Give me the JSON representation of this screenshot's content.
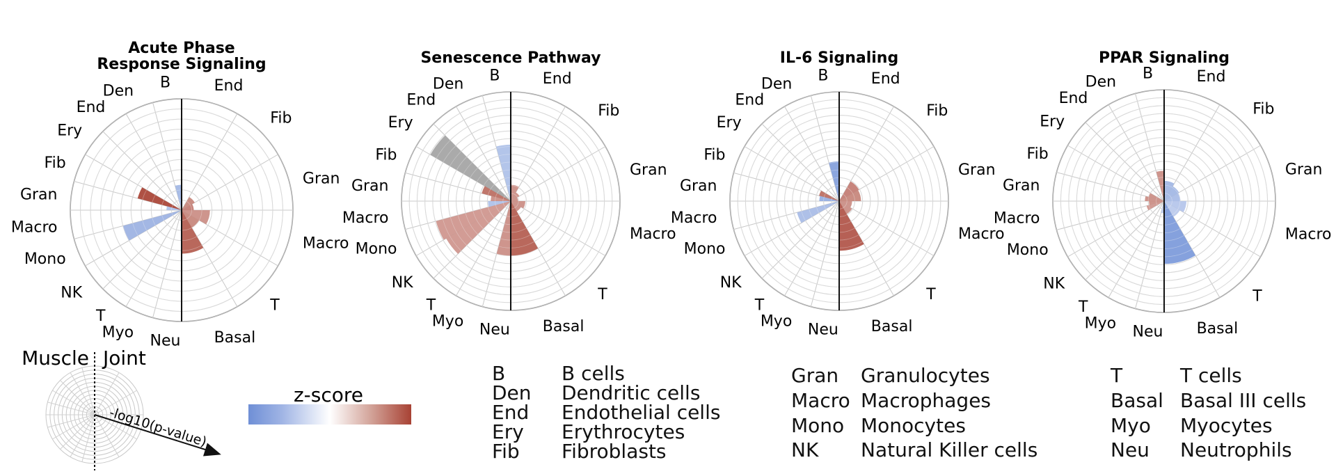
{
  "chart_data": [
    {
      "type": "polar-bar",
      "title": "Acute Phase\nResponse Signaling",
      "left_categories": [
        "B",
        "Den",
        "End",
        "Ery",
        "Fib",
        "Gran",
        "Macro",
        "Mono",
        "NK",
        "T",
        "Myo",
        "Neu"
      ],
      "right_categories": [
        "End",
        "Fib",
        "Gran",
        "Macro",
        "T",
        "Basal"
      ],
      "left_values": [
        2.5,
        0,
        0,
        0,
        4.5,
        1.5,
        0,
        6.0,
        0,
        0,
        0,
        0
      ],
      "right_values": [
        0,
        1.5,
        1.2,
        2.8,
        2.0,
        4.3
      ],
      "left_z": [
        -0.7,
        0,
        0,
        0,
        1.5,
        -0.5,
        0,
        -0.8,
        0,
        0,
        0,
        0
      ],
      "right_z": [
        0,
        0.7,
        0.8,
        0.6,
        0.7,
        1.2
      ],
      "r_max": 11,
      "rings": 11
    },
    {
      "type": "polar-bar",
      "title": "Senescence Pathway",
      "left_categories": [
        "B",
        "Den",
        "End",
        "Ery",
        "Fib",
        "Gran",
        "Macro",
        "Mono",
        "NK",
        "T",
        "Myo",
        "Neu"
      ],
      "right_categories": [
        "End",
        "Fib",
        "Gran",
        "Macro",
        "T",
        "Basal"
      ],
      "left_values": [
        6.2,
        0,
        0,
        10.2,
        3.3,
        2.2,
        2.5,
        8.5,
        8.2,
        0,
        0,
        6.0
      ],
      "right_values": [
        1.8,
        1.1,
        0.8,
        1.6,
        1.3,
        6.0
      ],
      "left_z": [
        -0.5,
        0,
        0,
        null,
        1.0,
        0.6,
        -0.5,
        0.5,
        0.5,
        0,
        0,
        0.6
      ],
      "right_z": [
        0.6,
        0.6,
        0.6,
        0.6,
        0.6,
        1.2
      ],
      "r_max": 12,
      "rings": 14
    },
    {
      "type": "polar-bar",
      "title": "IL-6 Signaling",
      "left_categories": [
        "B",
        "Den",
        "End",
        "Ery",
        "Fib",
        "Gran",
        "Macro",
        "Mono",
        "NK",
        "T",
        "Myo",
        "Neu"
      ],
      "right_categories": [
        "End",
        "Fib",
        "Gran",
        "Macro",
        "T",
        "Basal"
      ],
      "left_values": [
        4.0,
        0,
        0,
        0,
        2.1,
        2.0,
        0,
        4.4,
        0,
        0,
        0,
        0
      ],
      "right_values": [
        0,
        2.3,
        2.2,
        1.3,
        1.5,
        5.0
      ],
      "left_z": [
        -1.2,
        0,
        0,
        0,
        1.0,
        -0.9,
        0,
        -0.6,
        0,
        0,
        0,
        0
      ],
      "right_z": [
        0,
        0.8,
        0.7,
        0.6,
        0.6,
        1.3
      ],
      "r_max": 11,
      "rings": 14
    },
    {
      "type": "polar-bar",
      "title": "PPAR Signaling",
      "left_categories": [
        "B",
        "Den",
        "End",
        "Ery",
        "Fib",
        "Gran",
        "Macro",
        "Mono",
        "NK",
        "T",
        "Myo",
        "Neu"
      ],
      "right_categories": [
        "End",
        "Fib",
        "Gran",
        "Macro",
        "T",
        "Basal"
      ],
      "left_values": [
        3.0,
        0,
        0,
        0,
        1.6,
        1.9,
        1.5,
        1.8,
        0,
        0,
        0,
        1.2
      ],
      "right_values": [
        2.0,
        1.7,
        1.6,
        2.2,
        1.8,
        6.2
      ],
      "left_z": [
        0.6,
        0,
        0,
        0,
        0.6,
        0.6,
        0.6,
        0.5,
        0,
        0,
        0,
        -0.3
      ],
      "right_z": [
        -0.7,
        -0.7,
        -0.6,
        -0.4,
        -0.3,
        -1.3
      ],
      "r_max": 11,
      "rings": 14
    }
  ],
  "guide": {
    "left_label": "Muscle",
    "right_label": "Joint",
    "axis_label": "-log10(p-value)"
  },
  "colorbar": {
    "title": "z-score",
    "colors": [
      "#6f8fd6",
      "#ffffff",
      "#a84234"
    ],
    "nan_color": "#a3a3a3"
  },
  "abbreviations": [
    [
      {
        "abbr": "B",
        "name": "B cells"
      },
      {
        "abbr": "Den",
        "name": "Dendritic cells"
      },
      {
        "abbr": "End",
        "name": "Endothelial cells"
      },
      {
        "abbr": "Ery",
        "name": "Erythrocytes"
      },
      {
        "abbr": "Fib",
        "name": "Fibroblasts"
      }
    ],
    [
      {
        "abbr": "Gran",
        "name": "Granulocytes"
      },
      {
        "abbr": "Macro",
        "name": "Macrophages"
      },
      {
        "abbr": "Mono",
        "name": "Monocytes"
      },
      {
        "abbr": "NK",
        "name": "Natural Killer cells"
      }
    ],
    [
      {
        "abbr": "T",
        "name": "T cells"
      },
      {
        "abbr": "Basal",
        "name": "Basal III cells"
      },
      {
        "abbr": "Myo",
        "name": "Myocytes"
      },
      {
        "abbr": "Neu",
        "name": "Neutrophils"
      }
    ]
  ]
}
